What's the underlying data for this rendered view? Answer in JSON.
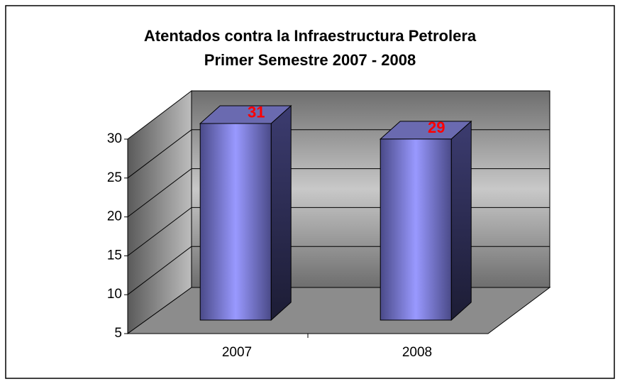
{
  "chart_data": {
    "type": "bar3d",
    "title": "Atentados contra la Infraestructura Petrolera",
    "subtitle": "Primer Semestre 2007 - 2008",
    "categories": [
      "2007",
      "2008"
    ],
    "values": [
      31,
      29
    ],
    "color": "#9999ff",
    "value_label_color": "#ff0000",
    "ylim": [
      5,
      30
    ],
    "yticks": [
      5,
      10,
      15,
      20,
      25,
      30
    ],
    "grid": true
  }
}
